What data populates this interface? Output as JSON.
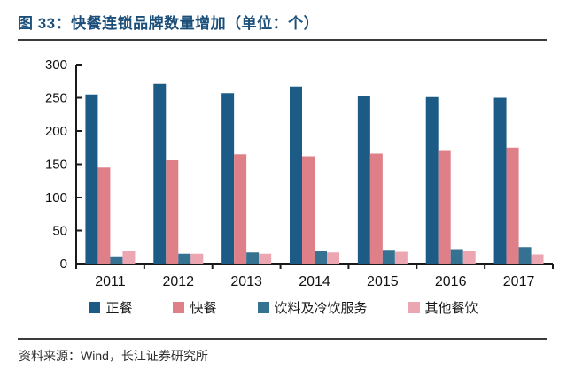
{
  "header": {
    "title": "图 33：快餐连锁品牌数量增加（单位：个）"
  },
  "chart_data": {
    "type": "bar",
    "title": "快餐连锁品牌数量增加",
    "unit": "个",
    "categories": [
      "2011",
      "2012",
      "2013",
      "2014",
      "2015",
      "2016",
      "2017"
    ],
    "series": [
      {
        "name": "正餐",
        "color": "#1d5b87",
        "values": [
          255,
          271,
          257,
          267,
          253,
          251,
          250
        ]
      },
      {
        "name": "快餐",
        "color": "#df8089",
        "values": [
          145,
          156,
          165,
          162,
          166,
          170,
          175
        ]
      },
      {
        "name": "饮料及冷饮服务",
        "color": "#357191",
        "values": [
          11,
          15,
          17,
          20,
          21,
          22,
          25
        ]
      },
      {
        "name": "其他餐饮",
        "color": "#eba6b1",
        "values": [
          20,
          15,
          15,
          17,
          18,
          20,
          14
        ]
      }
    ],
    "xlabel": "",
    "ylabel": "",
    "ylim": [
      0,
      300
    ],
    "yticks": [
      0,
      50,
      100,
      150,
      200,
      250,
      300
    ],
    "grid": false,
    "legend_position": "bottom",
    "axis_color": "#1a1a1a"
  },
  "footer": {
    "source": "资料来源：Wind，长江证券研究所"
  }
}
